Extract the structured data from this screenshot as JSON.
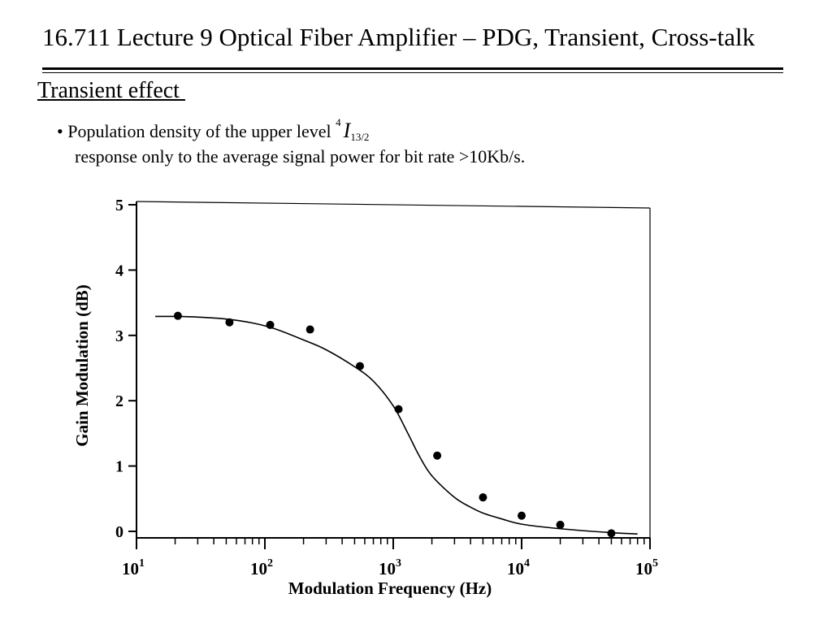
{
  "slide": {
    "title": "16.711 Lecture 9 Optical Fiber Amplifier – PDG, Transient, Cross-talk",
    "section": "Transient effect ",
    "bullet_marker": "•",
    "bullet_text": "Population density of the upper level",
    "level_sup": "4",
    "level_symbol": "I",
    "level_sub": "13/2",
    "bullet_line2": "response only to the average signal power for bit rate >10Kb/s."
  },
  "chart_data": {
    "type": "scatter",
    "xlabel": "Modulation Frequency (Hz)",
    "ylabel": "Gain Modulation (dB)",
    "x_scale": "log",
    "xlim": [
      10,
      100000
    ],
    "ylim": [
      -0.1,
      5.05
    ],
    "yticks": [
      "0",
      "1",
      "2",
      "3",
      "4",
      "5"
    ],
    "xticks": [
      {
        "base": "10",
        "exp": "1"
      },
      {
        "base": "10",
        "exp": "2"
      },
      {
        "base": "10",
        "exp": "3"
      },
      {
        "base": "10",
        "exp": "4"
      },
      {
        "base": "10",
        "exp": "5"
      }
    ],
    "grid": false,
    "series": [
      {
        "kind": "points",
        "marker": "filled-circle",
        "x": [
          21,
          53,
          110,
          225,
          550,
          1100,
          2200,
          5000,
          10000,
          20000,
          50000
        ],
        "y": [
          3.3,
          3.2,
          3.16,
          3.09,
          2.53,
          1.87,
          1.16,
          0.52,
          0.24,
          0.1,
          -0.03
        ]
      },
      {
        "kind": "fit-line",
        "x": [
          14,
          20,
          30,
          50,
          80,
          120,
          200,
          300,
          500,
          700,
          1000,
          1300,
          1600,
          2000,
          3000,
          4000,
          5000,
          7000,
          10000,
          20000,
          50000,
          80000
        ],
        "y": [
          3.29,
          3.29,
          3.28,
          3.25,
          3.19,
          3.1,
          2.93,
          2.78,
          2.52,
          2.3,
          1.92,
          1.5,
          1.15,
          0.85,
          0.52,
          0.37,
          0.28,
          0.19,
          0.11,
          0.04,
          -0.02,
          -0.04
        ]
      }
    ]
  }
}
